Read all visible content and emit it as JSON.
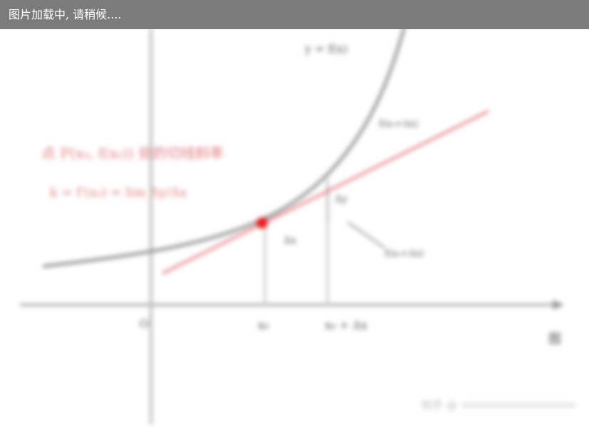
{
  "loading_bar": {
    "text": "图片加载中, 请稍候...."
  },
  "figure": {
    "labels": {
      "curve_label": "y = f(x)",
      "origin": "O",
      "x0": "x₀",
      "x0_plus": "x₀ + Δx",
      "dx": "Δx",
      "dy": "Δy",
      "f_x0_dx": "f(x₀+Δx)",
      "tangent_title": "点 P(x₀, f(x₀)) 处的切线斜率",
      "tangent_formula": "k = f′(x₀) = lim Δy/Δx",
      "bottom_right": "图",
      "watermark": "知乎 @"
    },
    "colors": {
      "axis": "#9a9a9a",
      "curve": "#8a8a8a",
      "tangent": "#e8727b",
      "point": "#e62020",
      "red_text": "#e07a80",
      "loading_bg": "#7b7b7b"
    }
  }
}
